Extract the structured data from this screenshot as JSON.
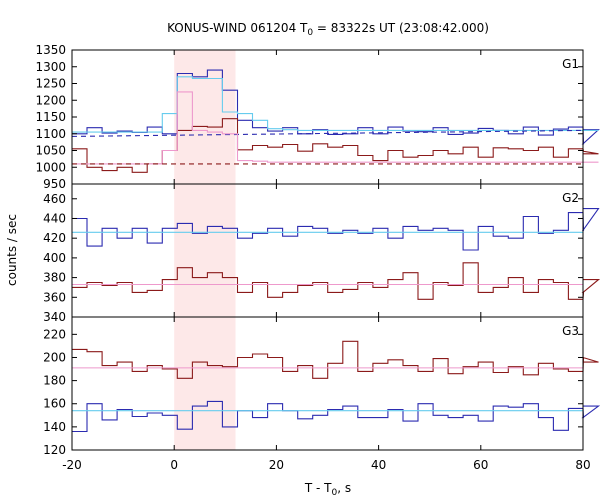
{
  "chart_data": {
    "type": "line",
    "title": "KONUS-WIND 061204 T",
    "title_sub": "0",
    "title_rest": " = 83322s UT (23:08:42.000)",
    "xlabel": "T - T",
    "xlabel_sub": "0",
    "xlabel_rest": ", s",
    "ylabel": "counts / sec",
    "xlim": [
      -20,
      80
    ],
    "xticks": [
      "-20",
      "0",
      "20",
      "40",
      "60",
      "80"
    ],
    "xtick_values": [
      -20,
      0,
      20,
      40,
      60,
      80
    ],
    "bin_width": 2.944,
    "bin_start": -20,
    "highlight_interval": [
      0,
      12
    ],
    "highlight_color": "#fde8e8",
    "colors": {
      "high": "#2b2bb0",
      "high_fit": "#66ccee",
      "low": "#8b1a1a",
      "low_fit": "#ee99cc"
    },
    "panels": [
      {
        "name": "G1",
        "ylim": [
          950,
          1350
        ],
        "yticks": [
          "950",
          "1000",
          "1050",
          "1100",
          "1150",
          "1200",
          "1250",
          "1300",
          "1350"
        ],
        "ytick_values": [
          950,
          1000,
          1050,
          1100,
          1150,
          1200,
          1250,
          1300,
          1350
        ],
        "top_label": true,
        "series": [
          {
            "role": "high",
            "style": "step",
            "values": [
              1100,
              1118,
              1102,
              1108,
              1104,
              1120,
              1100,
              1280,
              1270,
              1290,
              1230,
              1140,
              1118,
              1108,
              1118,
              1100,
              1112,
              1098,
              1100,
              1118,
              1100,
              1120,
              1108,
              1106,
              1118,
              1098,
              1102,
              1116,
              1110,
              1100,
              1120,
              1096,
              1114,
              1120,
              1070,
              1112
            ]
          },
          {
            "role": "high_fit",
            "style": "step",
            "values": [
              1105,
              1105,
              1105,
              1105,
              1105,
              1105,
              1160,
              1270,
              1265,
              1265,
              1165,
              1160,
              1140,
              1115,
              1112,
              1110,
              1110,
              1110,
              1110,
              1110,
              1110,
              1110,
              1110,
              1110,
              1110,
              1110,
              1110,
              1110,
              1110,
              1110,
              1110,
              1110,
              1110,
              1110,
              1110,
              1110
            ]
          },
          {
            "role": "high_level",
            "style": "dashed",
            "values": [
              1092,
              1110
            ]
          },
          {
            "role": "low",
            "style": "step",
            "values": [
              1055,
              1000,
              990,
              1000,
              985,
              1010,
              1050,
              1110,
              1122,
              1120,
              1145,
              1052,
              1065,
              1060,
              1068,
              1048,
              1070,
              1060,
              1065,
              1035,
              1020,
              1050,
              1030,
              1035,
              1050,
              1040,
              1060,
              1030,
              1058,
              1055,
              1050,
              1060,
              1030,
              1055,
              1048,
              1040
            ]
          },
          {
            "role": "low_fit",
            "style": "step",
            "values": [
              1010,
              1010,
              1010,
              1010,
              1010,
              1010,
              1050,
              1225,
              1110,
              1105,
              1100,
              1020,
              1018,
              1015,
              1015,
              1015,
              1015,
              1015,
              1015,
              1015,
              1015,
              1015,
              1015,
              1015,
              1015,
              1015,
              1015,
              1015,
              1015,
              1015,
              1015,
              1015,
              1015,
              1015,
              1015,
              1015
            ]
          },
          {
            "role": "low_level",
            "style": "dashed",
            "values": [
              1010,
              1010
            ]
          }
        ]
      },
      {
        "name": "G2",
        "ylim": [
          340,
          475
        ],
        "yticks": [
          "340",
          "360",
          "380",
          "400",
          "420",
          "440",
          "460"
        ],
        "ytick_values": [
          340,
          360,
          380,
          400,
          420,
          440,
          460
        ],
        "top_label": false,
        "series": [
          {
            "role": "high",
            "style": "step",
            "values": [
              440,
              412,
              430,
              420,
              430,
              415,
              430,
              435,
              425,
              432,
              430,
              420,
              425,
              430,
              422,
              432,
              430,
              425,
              428,
              425,
              430,
              420,
              432,
              428,
              430,
              428,
              408,
              432,
              422,
              420,
              442,
              425,
              428,
              446,
              428,
              450
            ]
          },
          {
            "role": "high_fit",
            "style": "line",
            "values": [
              426,
              426
            ]
          },
          {
            "role": "low",
            "style": "step",
            "values": [
              370,
              375,
              372,
              375,
              365,
              367,
              378,
              390,
              380,
              385,
              380,
              365,
              375,
              360,
              365,
              372,
              375,
              365,
              368,
              375,
              370,
              378,
              385,
              358,
              375,
              372,
              395,
              365,
              370,
              380,
              365,
              378,
              375,
              358,
              365,
              378
            ]
          },
          {
            "role": "low_fit",
            "style": "line",
            "values": [
              373,
              373
            ]
          }
        ]
      },
      {
        "name": "G3",
        "ylim": [
          120,
          235
        ],
        "yticks": [
          "120",
          "140",
          "160",
          "180",
          "200",
          "220"
        ],
        "ytick_values": [
          120,
          140,
          160,
          180,
          200,
          220
        ],
        "top_label": false,
        "series": [
          {
            "role": "high",
            "style": "step",
            "values": [
              136,
              160,
              146,
              155,
              149,
              152,
              150,
              138,
              158,
              162,
              140,
              154,
              148,
              160,
              154,
              147,
              150,
              155,
              158,
              148,
              148,
              155,
              145,
              160,
              150,
              148,
              150,
              145,
              158,
              157,
              160,
              148,
              137,
              156,
              148,
              158
            ]
          },
          {
            "role": "high_fit",
            "style": "line",
            "values": [
              154,
              154
            ]
          },
          {
            "role": "low",
            "style": "step",
            "values": [
              207,
              205,
              193,
              196,
              188,
              193,
              190,
              182,
              196,
              193,
              192,
              200,
              203,
              200,
              188,
              193,
              182,
              195,
              214,
              188,
              195,
              198,
              193,
              188,
              199,
              186,
              192,
              196,
              187,
              192,
              185,
              195,
              190,
              188,
              200,
              196
            ]
          },
          {
            "role": "low_fit",
            "style": "line",
            "values": [
              191,
              191
            ]
          }
        ]
      }
    ]
  }
}
